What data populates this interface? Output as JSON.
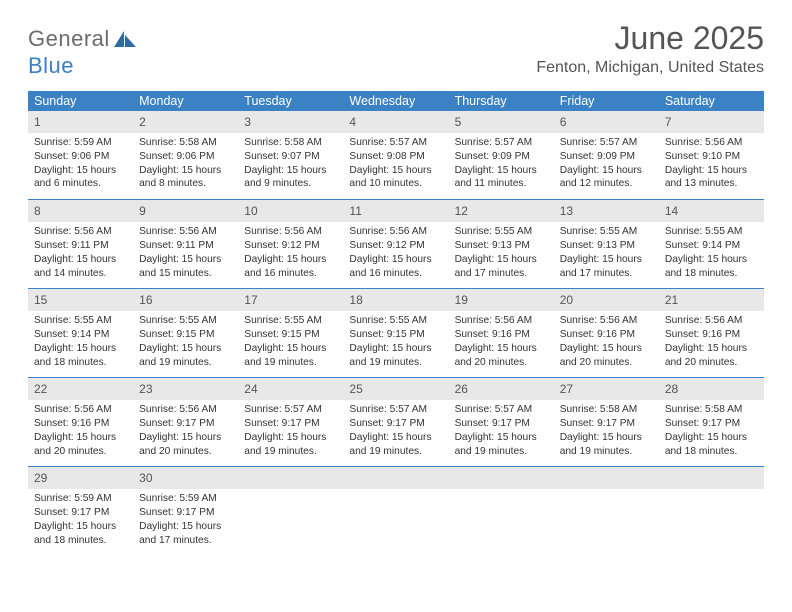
{
  "brand": {
    "general": "General",
    "blue": "Blue"
  },
  "title": {
    "month": "June 2025",
    "location": "Fenton, Michigan, United States"
  },
  "colors": {
    "header_bg": "#3b82c4",
    "header_text": "#ffffff",
    "daynum_bg": "#e8e8e8",
    "text": "#333333",
    "title_text": "#555555",
    "row_border": "#3b82c4"
  },
  "daynames": [
    "Sunday",
    "Monday",
    "Tuesday",
    "Wednesday",
    "Thursday",
    "Friday",
    "Saturday"
  ],
  "weeks": [
    [
      {
        "n": "1",
        "sunrise": "5:59 AM",
        "sunset": "9:06 PM",
        "daylight": "15 hours and 6 minutes."
      },
      {
        "n": "2",
        "sunrise": "5:58 AM",
        "sunset": "9:06 PM",
        "daylight": "15 hours and 8 minutes."
      },
      {
        "n": "3",
        "sunrise": "5:58 AM",
        "sunset": "9:07 PM",
        "daylight": "15 hours and 9 minutes."
      },
      {
        "n": "4",
        "sunrise": "5:57 AM",
        "sunset": "9:08 PM",
        "daylight": "15 hours and 10 minutes."
      },
      {
        "n": "5",
        "sunrise": "5:57 AM",
        "sunset": "9:09 PM",
        "daylight": "15 hours and 11 minutes."
      },
      {
        "n": "6",
        "sunrise": "5:57 AM",
        "sunset": "9:09 PM",
        "daylight": "15 hours and 12 minutes."
      },
      {
        "n": "7",
        "sunrise": "5:56 AM",
        "sunset": "9:10 PM",
        "daylight": "15 hours and 13 minutes."
      }
    ],
    [
      {
        "n": "8",
        "sunrise": "5:56 AM",
        "sunset": "9:11 PM",
        "daylight": "15 hours and 14 minutes."
      },
      {
        "n": "9",
        "sunrise": "5:56 AM",
        "sunset": "9:11 PM",
        "daylight": "15 hours and 15 minutes."
      },
      {
        "n": "10",
        "sunrise": "5:56 AM",
        "sunset": "9:12 PM",
        "daylight": "15 hours and 16 minutes."
      },
      {
        "n": "11",
        "sunrise": "5:56 AM",
        "sunset": "9:12 PM",
        "daylight": "15 hours and 16 minutes."
      },
      {
        "n": "12",
        "sunrise": "5:55 AM",
        "sunset": "9:13 PM",
        "daylight": "15 hours and 17 minutes."
      },
      {
        "n": "13",
        "sunrise": "5:55 AM",
        "sunset": "9:13 PM",
        "daylight": "15 hours and 17 minutes."
      },
      {
        "n": "14",
        "sunrise": "5:55 AM",
        "sunset": "9:14 PM",
        "daylight": "15 hours and 18 minutes."
      }
    ],
    [
      {
        "n": "15",
        "sunrise": "5:55 AM",
        "sunset": "9:14 PM",
        "daylight": "15 hours and 18 minutes."
      },
      {
        "n": "16",
        "sunrise": "5:55 AM",
        "sunset": "9:15 PM",
        "daylight": "15 hours and 19 minutes."
      },
      {
        "n": "17",
        "sunrise": "5:55 AM",
        "sunset": "9:15 PM",
        "daylight": "15 hours and 19 minutes."
      },
      {
        "n": "18",
        "sunrise": "5:55 AM",
        "sunset": "9:15 PM",
        "daylight": "15 hours and 19 minutes."
      },
      {
        "n": "19",
        "sunrise": "5:56 AM",
        "sunset": "9:16 PM",
        "daylight": "15 hours and 20 minutes."
      },
      {
        "n": "20",
        "sunrise": "5:56 AM",
        "sunset": "9:16 PM",
        "daylight": "15 hours and 20 minutes."
      },
      {
        "n": "21",
        "sunrise": "5:56 AM",
        "sunset": "9:16 PM",
        "daylight": "15 hours and 20 minutes."
      }
    ],
    [
      {
        "n": "22",
        "sunrise": "5:56 AM",
        "sunset": "9:16 PM",
        "daylight": "15 hours and 20 minutes."
      },
      {
        "n": "23",
        "sunrise": "5:56 AM",
        "sunset": "9:17 PM",
        "daylight": "15 hours and 20 minutes."
      },
      {
        "n": "24",
        "sunrise": "5:57 AM",
        "sunset": "9:17 PM",
        "daylight": "15 hours and 19 minutes."
      },
      {
        "n": "25",
        "sunrise": "5:57 AM",
        "sunset": "9:17 PM",
        "daylight": "15 hours and 19 minutes."
      },
      {
        "n": "26",
        "sunrise": "5:57 AM",
        "sunset": "9:17 PM",
        "daylight": "15 hours and 19 minutes."
      },
      {
        "n": "27",
        "sunrise": "5:58 AM",
        "sunset": "9:17 PM",
        "daylight": "15 hours and 19 minutes."
      },
      {
        "n": "28",
        "sunrise": "5:58 AM",
        "sunset": "9:17 PM",
        "daylight": "15 hours and 18 minutes."
      }
    ],
    [
      {
        "n": "29",
        "sunrise": "5:59 AM",
        "sunset": "9:17 PM",
        "daylight": "15 hours and 18 minutes."
      },
      {
        "n": "30",
        "sunrise": "5:59 AM",
        "sunset": "9:17 PM",
        "daylight": "15 hours and 17 minutes."
      },
      null,
      null,
      null,
      null,
      null
    ]
  ],
  "labels": {
    "sunrise": "Sunrise: ",
    "sunset": "Sunset: ",
    "daylight": "Daylight: "
  }
}
